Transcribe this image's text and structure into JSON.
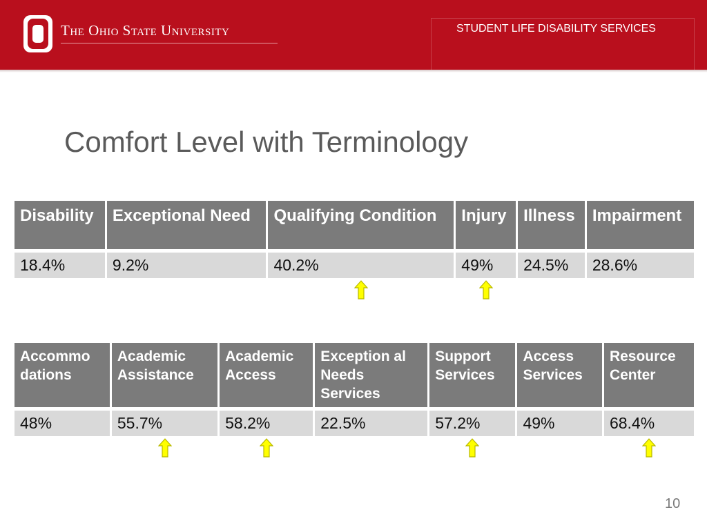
{
  "header": {
    "university": "The Ohio State University",
    "department": "STUDENT LIFE DISABILITY SERVICES",
    "color": "#b90f1d"
  },
  "slide": {
    "title": "Comfort Level with Terminology",
    "page_number": "10"
  },
  "table1": {
    "headers": [
      "Disability",
      "Exceptional Need",
      "Qualifying Condition",
      "Injury",
      "Illness",
      "Impairment"
    ],
    "values": [
      "18.4%",
      "9.2%",
      "40.2%",
      "49%",
      "24.5%",
      "28.6%"
    ],
    "arrow_columns": [
      2,
      3
    ]
  },
  "table2": {
    "headers": [
      "Accommo dations",
      "Academic Assistance",
      "Academic Access",
      "Exception al Needs Services",
      "Support Services",
      "Access Services",
      "Resource Center"
    ],
    "values": [
      "48%",
      "55.7%",
      "58.2%",
      "22.5%",
      "57.2%",
      "49%",
      "68.4%"
    ],
    "arrow_columns": [
      1,
      2,
      4,
      6
    ]
  },
  "arrow": {
    "icon": "up-arrow-icon",
    "fill": "#ffff00",
    "stroke": "#b8b800"
  }
}
